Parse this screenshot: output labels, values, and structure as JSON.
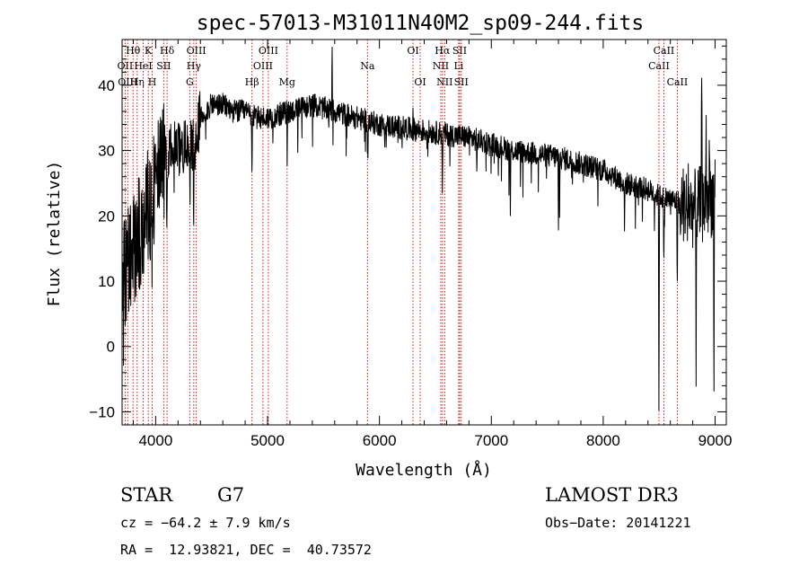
{
  "chart_data": {
    "type": "line",
    "title": "spec-57013-M31011N40M2_sp09-244.fits",
    "xlabel": "Wavelength (Å)",
    "ylabel": "Flux (relative)",
    "xlim": [
      3700,
      9100
    ],
    "ylim": [
      -12,
      47
    ],
    "x_ticks": [
      4000,
      5000,
      6000,
      7000,
      8000,
      9000
    ],
    "y_ticks": [
      -10,
      0,
      10,
      20,
      30,
      40
    ],
    "x_tick_labels": [
      "4000",
      "5000",
      "6000",
      "7000",
      "8000",
      "9000"
    ],
    "y_tick_labels": [
      "−10",
      "0",
      "10",
      "20",
      "30",
      "40"
    ],
    "grid": false,
    "line_color": "#000000",
    "marker_color": "#cc0000",
    "spectrum_anchors": {
      "x": [
        3700,
        3750,
        3800,
        3850,
        3900,
        3950,
        4000,
        4050,
        4100,
        4150,
        4200,
        4250,
        4300,
        4350,
        4400,
        4500,
        4600,
        4700,
        4800,
        4900,
        5000,
        5200,
        5400,
        5600,
        5800,
        6000,
        6200,
        6400,
        6600,
        6800,
        7000,
        7200,
        7400,
        7600,
        7800,
        8000,
        8200,
        8400,
        8500,
        8600,
        8700,
        8800,
        8900,
        9000
      ],
      "y": [
        8,
        14,
        15,
        17,
        20,
        22,
        25,
        28,
        29,
        30,
        30,
        31,
        30,
        31,
        35,
        37,
        37,
        36,
        36,
        35,
        35,
        36,
        37,
        36,
        35,
        34,
        33.5,
        33,
        32.5,
        32,
        31,
        30,
        29.5,
        29,
        28,
        27,
        25,
        24,
        23,
        22.5,
        22,
        21,
        22,
        23
      ]
    },
    "absorption_features": [
      {
        "x": 3933,
        "depth": 14
      },
      {
        "x": 3968,
        "depth": 17
      },
      {
        "x": 4101,
        "depth": 8
      },
      {
        "x": 4305,
        "depth": 9
      },
      {
        "x": 4340,
        "depth": 12
      },
      {
        "x": 4861,
        "depth": 9
      },
      {
        "x": 5175,
        "depth": 7
      },
      {
        "x": 5270,
        "depth": 6
      },
      {
        "x": 5893,
        "depth": 5
      },
      {
        "x": 6300,
        "depth": 4
      },
      {
        "x": 6563,
        "depth": 10
      },
      {
        "x": 6870,
        "depth": 6
      },
      {
        "x": 7170,
        "depth": 10
      },
      {
        "x": 7600,
        "depth": 12
      },
      {
        "x": 7610,
        "depth": 8
      },
      {
        "x": 8190,
        "depth": 8
      },
      {
        "x": 8498,
        "depth": 35
      },
      {
        "x": 8542,
        "depth": 12
      },
      {
        "x": 8662,
        "depth": 14
      },
      {
        "x": 8690,
        "depth": 6
      },
      {
        "x": 8830,
        "depth": 22
      },
      {
        "x": 8990,
        "depth": 25
      }
    ],
    "emission_features": [
      {
        "x": 5577,
        "height": 12
      },
      {
        "x": 6300,
        "height": 8
      },
      {
        "x": 8880,
        "height": 25
      },
      {
        "x": 8920,
        "height": 14
      },
      {
        "x": 8950,
        "height": 10
      },
      {
        "x": 8760,
        "height": 6
      }
    ],
    "line_markers": [
      {
        "x": 3727,
        "row": 1,
        "label": "OII"
      },
      {
        "x": 3750,
        "row": 2,
        "label": "OIII"
      },
      {
        "x": 3798,
        "row": 0,
        "label": "Hθ"
      },
      {
        "x": 3835,
        "row": 2,
        "label": "Hη"
      },
      {
        "x": 3889,
        "row": 1,
        "label": "HeI"
      },
      {
        "x": 3934,
        "row": 0,
        "label": "K"
      },
      {
        "x": 3969,
        "row": 2,
        "label": "H"
      },
      {
        "x": 4072,
        "row": 1,
        "label": "SII"
      },
      {
        "x": 4102,
        "row": 0,
        "label": "Hδ"
      },
      {
        "x": 4305,
        "row": 2,
        "label": "G"
      },
      {
        "x": 4341,
        "row": 1,
        "label": "Hγ"
      },
      {
        "x": 4363,
        "row": 0,
        "label": "OIII"
      },
      {
        "x": 4861,
        "row": 2,
        "label": "Hβ"
      },
      {
        "x": 4959,
        "row": 1,
        "label": "OIII"
      },
      {
        "x": 5007,
        "row": 0,
        "label": "OIII"
      },
      {
        "x": 5175,
        "row": 2,
        "label": "Mg"
      },
      {
        "x": 5893,
        "row": 1,
        "label": "Na"
      },
      {
        "x": 6300,
        "row": 0,
        "label": "OI"
      },
      {
        "x": 6364,
        "row": 2,
        "label": "OI"
      },
      {
        "x": 6548,
        "row": 1,
        "label": "NII"
      },
      {
        "x": 6563,
        "row": 0,
        "label": "Hα"
      },
      {
        "x": 6583,
        "row": 2,
        "label": "NII"
      },
      {
        "x": 6708,
        "row": 1,
        "label": "Li"
      },
      {
        "x": 6717,
        "row": 0,
        "label": "SII"
      },
      {
        "x": 6731,
        "row": 2,
        "label": "SII"
      },
      {
        "x": 8498,
        "row": 1,
        "label": "CaII"
      },
      {
        "x": 8542,
        "row": 0,
        "label": "CaII"
      },
      {
        "x": 8662,
        "row": 2,
        "label": "CaII"
      }
    ]
  },
  "info": {
    "object_class": "STAR",
    "subclass": "G7",
    "survey": "LAMOST DR3",
    "cz": "cz = −64.2 ± 7.9 km/s",
    "obs_date": "Obs−Date: 20141221",
    "coords": "RA =  12.93821, DEC =  40.73572"
  }
}
